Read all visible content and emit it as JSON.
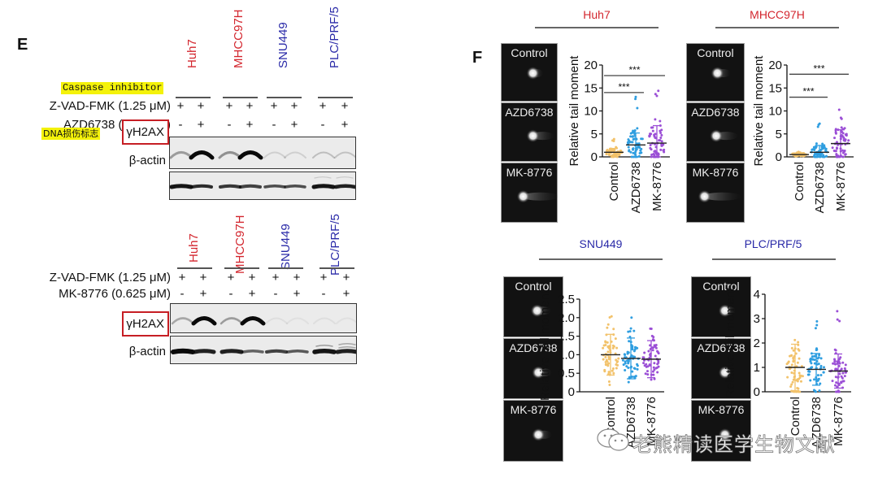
{
  "panel_e": {
    "letter": "E",
    "annotation_caspase": "Caspase inhibitor",
    "annotation_dna": "DNA损伤标志",
    "cell_lines": [
      {
        "name": "Huh7",
        "color": "#d3262e"
      },
      {
        "name": "MHCC97H",
        "color": "#d3262e"
      },
      {
        "name": "SNU449",
        "color": "#2a2aa8"
      },
      {
        "name": "PLC/PRF/5",
        "color": "#2a2aa8"
      }
    ],
    "blot1": {
      "rows": [
        {
          "label": "Z-VAD-FMK (1.25 μM)",
          "signs": [
            "+",
            "+",
            "+",
            "+",
            "+",
            "+",
            "+",
            "+"
          ]
        },
        {
          "label": "AZD6738 (1.25 μM)",
          "signs": [
            "-",
            "+",
            "-",
            "+",
            "-",
            "+",
            "-",
            "+"
          ]
        }
      ],
      "band_labels": [
        "γH2AX",
        "β-actin"
      ]
    },
    "blot2": {
      "rows": [
        {
          "label": "Z-VAD-FMK  (1.25 μM)",
          "signs": [
            "+",
            "+",
            "+",
            "+",
            "+",
            "+",
            "+",
            "+"
          ]
        },
        {
          "label": "MK-8776 (0.625 μM)",
          "signs": [
            "-",
            "+",
            "-",
            "+",
            "-",
            "+",
            "-",
            "+"
          ]
        }
      ],
      "band_labels": [
        "γH2AX",
        "β-actin"
      ]
    }
  },
  "panel_f": {
    "letter": "F",
    "comet_labels": [
      "Control",
      "AZD6738",
      "MK-8776"
    ],
    "groups": [
      {
        "title": "Huh7",
        "color": "#d3262e"
      },
      {
        "title": "MHCC97H",
        "color": "#d3262e"
      },
      {
        "title": "SNU449",
        "color": "#2a2aa8"
      },
      {
        "title": "PLC/PRF/5",
        "color": "#2a2aa8"
      }
    ],
    "ylabel": "Relative tail moment",
    "sig": "***"
  },
  "watermark": "老熊精读医学生物文献",
  "chart_data": [
    {
      "type": "scatter",
      "title": "Huh7",
      "xlabel": "",
      "ylabel": "Relative tail moment",
      "categories": [
        "Control",
        "AZD6738",
        "MK-8776"
      ],
      "ylim": [
        0,
        20
      ],
      "yticks": [
        0,
        5,
        10,
        15,
        20
      ],
      "series": [
        {
          "name": "Control",
          "color": "#f2c26b",
          "mean": 1.0,
          "sd": 0.8,
          "max": 4
        },
        {
          "name": "AZD6738",
          "color": "#2f9ee0",
          "mean": 2.6,
          "sd": 2.6,
          "max": 13.8
        },
        {
          "name": "MK-8776",
          "color": "#9b4fd6",
          "mean": 3.0,
          "sd": 3.8,
          "max": 16.3
        }
      ],
      "annotations": [
        {
          "from": "Control",
          "to": "AZD6738",
          "label": "***",
          "y": 14
        },
        {
          "from": "Control",
          "to": "MK-8776",
          "label": "***",
          "y": 17.7
        }
      ]
    },
    {
      "type": "scatter",
      "title": "MHCC97H",
      "xlabel": "",
      "ylabel": "Relative tail moment",
      "categories": [
        "Control",
        "AZD6738",
        "MK-8776"
      ],
      "ylim": [
        0,
        20
      ],
      "yticks": [
        0,
        5,
        10,
        15,
        20
      ],
      "series": [
        {
          "name": "Control",
          "color": "#f2c26b",
          "mean": 0.5,
          "sd": 0.3,
          "max": 1.2
        },
        {
          "name": "AZD6738",
          "color": "#2f9ee0",
          "mean": 1.0,
          "sd": 1.5,
          "max": 8
        },
        {
          "name": "MK-8776",
          "color": "#9b4fd6",
          "mean": 2.9,
          "sd": 3.0,
          "max": 10.8
        }
      ],
      "annotations": [
        {
          "from": "Control",
          "to": "AZD6738",
          "label": "***",
          "y": 13
        },
        {
          "from": "Control",
          "to": "MK-8776",
          "label": "***",
          "y": 18
        }
      ]
    },
    {
      "type": "scatter",
      "title": "SNU449",
      "xlabel": "",
      "ylabel": "Relative tail moment",
      "categories": [
        "Control",
        "AZD6738",
        "MK-8776"
      ],
      "ylim": [
        0,
        2.5
      ],
      "yticks": [
        0,
        0.5,
        1.0,
        1.5,
        2.0,
        2.5
      ],
      "series": [
        {
          "name": "Control",
          "color": "#f2c26b",
          "mean": 1.0,
          "sd": 0.55,
          "max": 2.2
        },
        {
          "name": "AZD6738",
          "color": "#2f9ee0",
          "mean": 0.9,
          "sd": 0.55,
          "max": 2.05
        },
        {
          "name": "MK-8776",
          "color": "#9b4fd6",
          "mean": 0.88,
          "sd": 0.5,
          "max": 1.8
        }
      ]
    },
    {
      "type": "scatter",
      "title": "PLC/PRF/5",
      "xlabel": "",
      "ylabel": "Relative tail moment",
      "categories": [
        "Control",
        "AZD6738",
        "MK-8776"
      ],
      "ylim": [
        0,
        4
      ],
      "yticks": [
        0,
        1,
        2,
        3,
        4
      ],
      "series": [
        {
          "name": "Control",
          "color": "#f2c26b",
          "mean": 1.0,
          "sd": 0.95,
          "max": 2.55
        },
        {
          "name": "AZD6738",
          "color": "#2f9ee0",
          "mean": 0.92,
          "sd": 0.65,
          "max": 2.95
        },
        {
          "name": "MK-8776",
          "color": "#9b4fd6",
          "mean": 0.85,
          "sd": 0.7,
          "max": 3.4
        }
      ]
    }
  ]
}
